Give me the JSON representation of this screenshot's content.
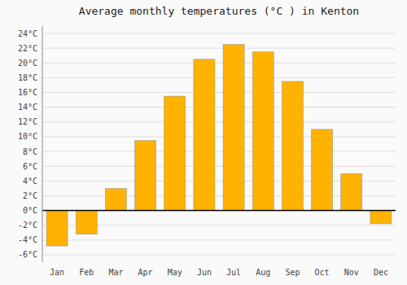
{
  "chart_data": {
    "type": "bar",
    "title": "Average monthly temperatures (°C ) in Kenton",
    "categories": [
      "Jan",
      "Feb",
      "Mar",
      "Apr",
      "May",
      "Jun",
      "Jul",
      "Aug",
      "Sep",
      "Oct",
      "Nov",
      "Dec"
    ],
    "values": [
      -4.8,
      -3.2,
      3.0,
      9.5,
      15.5,
      20.5,
      22.5,
      21.5,
      17.5,
      11.0,
      5.0,
      -1.8
    ],
    "color": "#FFB300",
    "ylim": [
      -7,
      25
    ],
    "yticks": [
      {
        "value": -6,
        "label": "-6°C"
      },
      {
        "value": -4,
        "label": "-4°C"
      },
      {
        "value": -2,
        "label": "-2°C"
      },
      {
        "value": 0,
        "label": "0°C"
      },
      {
        "value": 2,
        "label": "2°C"
      },
      {
        "value": 4,
        "label": "4°C"
      },
      {
        "value": 6,
        "label": "6°C"
      },
      {
        "value": 8,
        "label": "8°C"
      },
      {
        "value": 10,
        "label": "10°C"
      },
      {
        "value": 12,
        "label": "12°C"
      },
      {
        "value": 14,
        "label": "14°C"
      },
      {
        "value": 16,
        "label": "16°C"
      },
      {
        "value": 18,
        "label": "18°C"
      },
      {
        "value": 20,
        "label": "20°C"
      },
      {
        "value": 22,
        "label": "22°C"
      },
      {
        "value": 24,
        "label": "24°C"
      }
    ],
    "grid": true
  }
}
